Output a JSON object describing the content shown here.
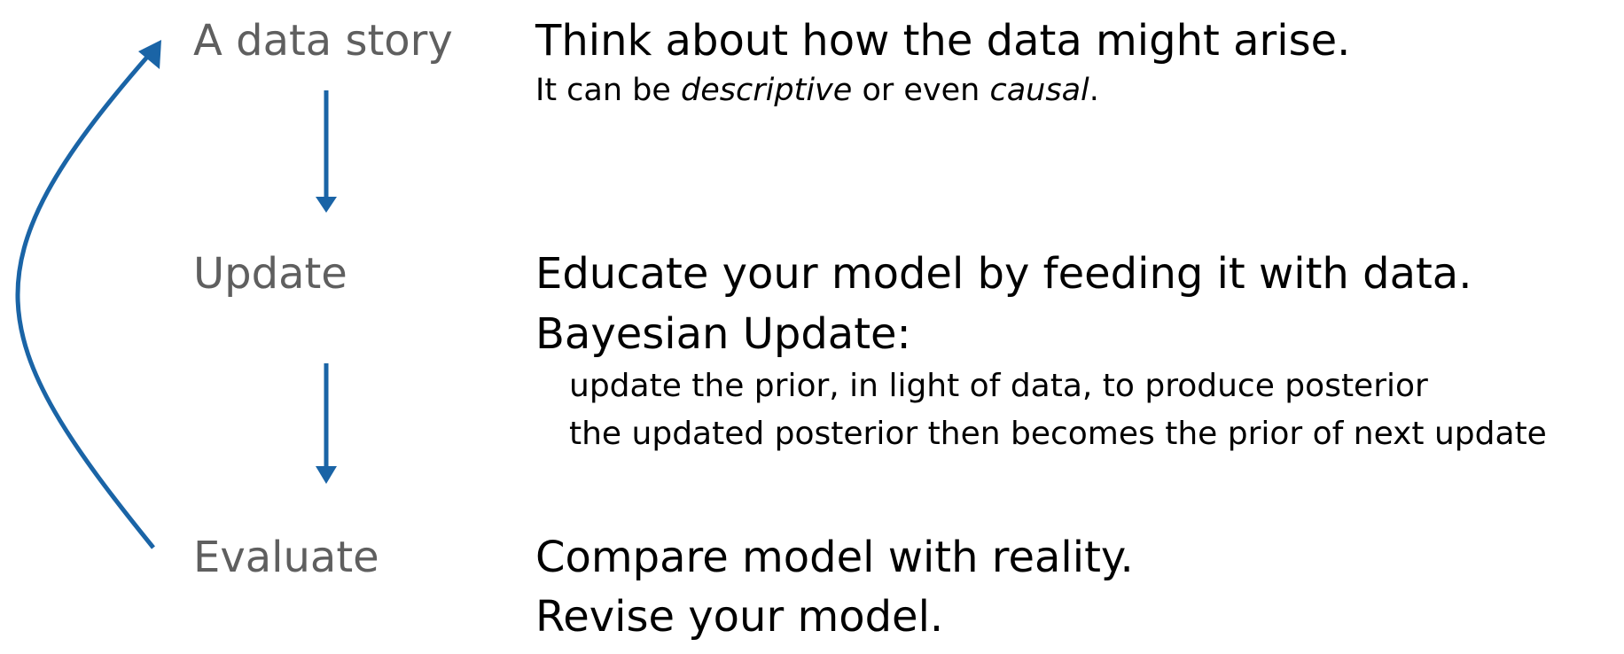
{
  "steps": [
    {
      "label": "A data story",
      "lines": [
        "Think about how the data might arise."
      ],
      "subline": {
        "prefix": "It can be ",
        "em1": "descriptive",
        "middle": " or even ",
        "em2": "causal",
        "suffix": "."
      }
    },
    {
      "label": "Update",
      "lines": [
        "Educate your model by feeding it with data.",
        "Bayesian Update:"
      ],
      "bullets": [
        "update the prior, in light of data, to produce posterior",
        "the updated posterior then becomes the prior of next update"
      ]
    },
    {
      "label": "Evaluate",
      "lines": [
        "Compare model with reality.",
        "Revise your model."
      ]
    }
  ],
  "colors": {
    "arrow": "#1a64a6",
    "label": "#5f5f5f",
    "text": "#000000"
  },
  "icons": {
    "down-arrow": "down-arrow-icon",
    "loop-arrow": "loop-arrow-icon"
  }
}
